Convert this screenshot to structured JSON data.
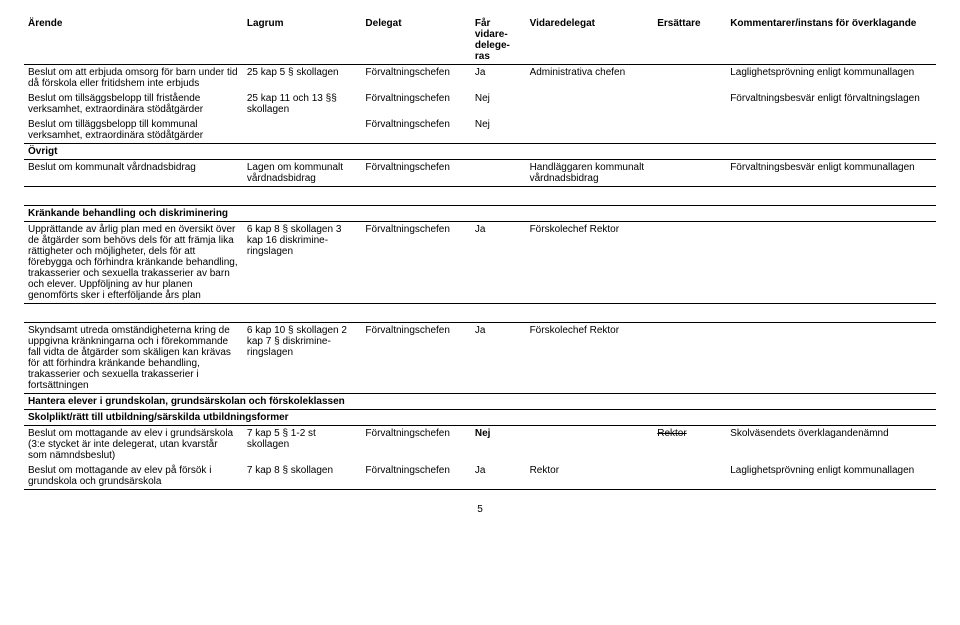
{
  "header": {
    "cols": [
      "Ärende",
      "Lagrum",
      "Delegat",
      "Får vidare-delege-ras",
      "Vidaredelegat",
      "Ersättare",
      "Kommentarer/instans för överklagande"
    ]
  },
  "block1": {
    "rows": [
      {
        "arende": "Beslut om att erbjuda omsorg för barn under tid då förskola eller fritidshem inte erbjuds",
        "lagrum": "25 kap 5 § skollagen",
        "delegat": "Förvaltningschefen",
        "far": "Ja",
        "vidare": "Administrativa chefen",
        "ers": "",
        "komm": "Laglighetsprövning enligt kommunallagen"
      },
      {
        "arende": "Beslut om tillsäggsbelopp till fristående verksamhet, extraordinära stödåtgärder",
        "lagrum": "25 kap 11 och 13 §§ skollagen",
        "delegat": "Förvaltningschefen",
        "far": "Nej",
        "vidare": "",
        "ers": "",
        "komm": "Förvaltningsbesvär enligt förvaltningslagen"
      },
      {
        "arende": "Beslut om tilläggsbelopp till kommunal verksamhet, extraordinära stödåtgärder",
        "lagrum": "",
        "delegat": "Förvaltningschefen",
        "far": "Nej",
        "vidare": "",
        "ers": "",
        "komm": ""
      }
    ],
    "ovrigt": "Övrigt",
    "ovrigt_row": {
      "arende": "Beslut om kommunalt vårdnadsbidrag",
      "lagrum": "Lagen om kommunalt vårdnadsbidrag",
      "delegat": "Förvaltningschefen",
      "far": "",
      "vidare": "Handläggaren kommunalt vårdnadsbidrag",
      "ers": "",
      "komm": "Förvaltningsbesvär enligt kommunallagen"
    }
  },
  "block2": {
    "title": "Kränkande behandling och diskriminering",
    "row": {
      "arende": "Upprättande av årlig plan med en översikt över de åtgärder som behövs dels för att främja lika rättigheter och möjligheter, dels för att förebygga och förhindra kränkande behandling, trakasserier och sexuella trakasserier av barn och elever. Uppföljning av hur planen genomförts sker i efterföljande års plan",
      "lagrum": "6 kap 8 § skollagen 3 kap 16 diskrimine-ringslagen",
      "delegat": "Förvaltningschefen",
      "far": "Ja",
      "vidare": "Förskolechef Rektor",
      "ers": "",
      "komm": ""
    }
  },
  "block3": {
    "row": {
      "arende": "Skyndsamt utreda omständigheterna kring de uppgivna kränkningarna och i förekommande fall vidta de åtgärder som skäligen kan krävas för att förhindra kränkande behandling, trakasserier och sexuella trakasserier i fortsättningen",
      "lagrum": "6 kap 10 § skollagen 2 kap 7 § diskrimine-ringslagen",
      "delegat": "Förvaltningschefen",
      "far": "Ja",
      "vidare": "Förskolechef Rektor",
      "ers": "",
      "komm": ""
    }
  },
  "block4": {
    "title1": "Hantera elever i grundskolan, grundsärskolan och förskoleklassen",
    "title2": "Skolplikt/rätt till utbildning/särskilda utbildningsformer",
    "rows": [
      {
        "arende": "Beslut om mottagande av elev i grundsärskola (3:e stycket är inte delegerat, utan kvarstår som nämndsbeslut)",
        "lagrum": "7 kap 5 § 1-2 st skollagen",
        "delegat": "Förvaltningschefen",
        "far": "Nej",
        "vidare": "",
        "ers": "Rektor",
        "ers_strike": true,
        "komm": "Skolväsendets överklagandenämnd"
      },
      {
        "arende": "Beslut om mottagande av elev på försök i grundskola och grundsärskola",
        "lagrum": "7 kap 8 § skollagen",
        "delegat": "Förvaltningschefen",
        "far": "Ja",
        "vidare": "Rektor",
        "ers": "",
        "komm": "Laglighetsprövning enligt kommunallagen"
      }
    ]
  },
  "page_number": "5"
}
